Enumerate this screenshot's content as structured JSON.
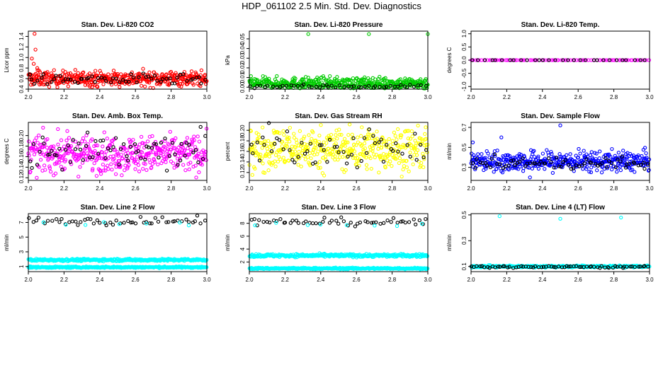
{
  "title": "HDP_061102  2.5 Min. Std. Dev. Diagnostics",
  "colors": {
    "red": "#ff0000",
    "green": "#00cc00",
    "magenta": "#ff00ff",
    "yellow": "#ffff00",
    "blue": "#0000ff",
    "cyan": "#00ffff",
    "black": "#000000"
  },
  "chart_data": [
    {
      "type": "scatter",
      "title": "Stan. Dev. Li-820 CO2",
      "ylabel": "Licor ppm",
      "xlim": [
        2.0,
        3.0
      ],
      "ylim": [
        0.4,
        1.5
      ],
      "xticks": [
        "2.0",
        "2.2",
        "2.4",
        "2.6",
        "2.8",
        "3.0"
      ],
      "yticks": [
        "0.4",
        "0.6",
        "0.8",
        "1.0",
        "1.2",
        "1.4"
      ],
      "ytick_values": [
        0.4,
        0.6,
        0.8,
        1.0,
        1.2,
        1.4
      ],
      "series": [
        {
          "name": "main",
          "color": "#ff0000",
          "n": 450,
          "mean": 0.6,
          "spread": 0.07,
          "outliers": [
            [
              2.02,
              0.98
            ],
            [
              2.03,
              0.88
            ],
            [
              2.035,
              1.45
            ],
            [
              2.04,
              1.15
            ],
            [
              2.05,
              0.8
            ],
            [
              2.06,
              0.75
            ]
          ]
        },
        {
          "name": "overlay",
          "color": "#000000",
          "n": 60,
          "mean": 0.58,
          "spread": 0.05
        }
      ]
    },
    {
      "type": "scatter",
      "title": "Stan. Dev. Li-820 Pressure",
      "ylabel": "kPa",
      "xlim": [
        2.0,
        3.0
      ],
      "ylim": [
        -0.002,
        0.058
      ],
      "xticks": [
        "2.0",
        "2.2",
        "2.4",
        "2.6",
        "2.8",
        "3.0"
      ],
      "yticks": [
        "0.00",
        "0.01",
        "0.02",
        "0.03",
        "0.04",
        "0.05"
      ],
      "ytick_values": [
        0.0,
        0.01,
        0.02,
        0.03,
        0.04,
        0.05
      ],
      "series": [
        {
          "name": "main",
          "color": "#00cc00",
          "n": 450,
          "mean": 0.004,
          "spread": 0.003,
          "outliers": [
            [
              2.33,
              0.055
            ],
            [
              2.67,
              0.055
            ],
            [
              3.0,
              0.055
            ]
          ]
        },
        {
          "name": "overlay",
          "color": "#000000",
          "n": 50,
          "mean": 0.001,
          "spread": 0.001
        }
      ]
    },
    {
      "type": "scatter",
      "title": "Stan. Dev. Li-820 Temp.",
      "ylabel": "degrees C",
      "xlim": [
        2.0,
        3.0
      ],
      "ylim": [
        -1.1,
        1.1
      ],
      "xticks": [
        "2.0",
        "2.2",
        "2.4",
        "2.6",
        "2.8",
        "3.0"
      ],
      "yticks": [
        "-1.0",
        "-0.5",
        "0.0",
        "0.5",
        "1.0"
      ],
      "ytick_values": [
        -1.0,
        -0.5,
        0.0,
        0.5,
        1.0
      ],
      "series": [
        {
          "name": "main",
          "color": "#ff00ff",
          "n": 90,
          "mean": 0.0,
          "spread": 0.0
        },
        {
          "name": "overlay",
          "color": "#000000",
          "n": 30,
          "mean": 0.0,
          "spread": 0.0
        }
      ]
    },
    {
      "type": "scatter",
      "title": "Stan. Dev. Amb. Box Temp.",
      "ylabel": "degrees C",
      "xlim": [
        2.0,
        3.0
      ],
      "ylim": [
        0.115,
        0.225
      ],
      "xticks": [
        "2.0",
        "2.2",
        "2.4",
        "2.6",
        "2.8",
        "3.0"
      ],
      "yticks": [
        "0.12",
        "0.14",
        "0.16",
        "0.18",
        "0.20"
      ],
      "ytick_values": [
        0.12,
        0.14,
        0.16,
        0.18,
        0.2
      ],
      "series": [
        {
          "name": "main",
          "color": "#ff00ff",
          "n": 450,
          "mean": 0.165,
          "spread": 0.017
        },
        {
          "name": "overlay",
          "color": "#000000",
          "n": 70,
          "mean": 0.168,
          "spread": 0.017
        }
      ]
    },
    {
      "type": "scatter",
      "title": "Stan. Dev. Gas Stream RH",
      "ylabel": "percent",
      "xlim": [
        2.0,
        3.0
      ],
      "ylim": [
        0.105,
        0.215
      ],
      "xticks": [
        "2.0",
        "2.2",
        "2.4",
        "2.6",
        "2.8",
        "3.0"
      ],
      "yticks": [
        "0.12",
        "0.14",
        "0.16",
        "0.18",
        "0.20"
      ],
      "ytick_values": [
        0.12,
        0.14,
        0.16,
        0.18,
        0.2
      ],
      "series": [
        {
          "name": "main",
          "color": "#ffff00",
          "n": 450,
          "mean": 0.165,
          "spread": 0.02
        },
        {
          "name": "overlay",
          "color": "#000000",
          "n": 60,
          "mean": 0.168,
          "spread": 0.018
        }
      ]
    },
    {
      "type": "scatter",
      "title": "Stan. Dev. Sample Flow",
      "ylabel": "ml/min",
      "xlim": [
        2.0,
        3.0
      ],
      "ylim": [
        0.17,
        0.75
      ],
      "xticks": [
        "2.0",
        "2.2",
        "2.4",
        "2.6",
        "2.8",
        "3.0"
      ],
      "yticks": [
        "0.3",
        "0.5",
        "0.7"
      ],
      "ytick_values": [
        0.3,
        0.5,
        0.7
      ],
      "series": [
        {
          "name": "main",
          "color": "#0000ff",
          "n": 450,
          "mean": 0.36,
          "spread": 0.05,
          "outliers": [
            [
              2.01,
              0.55
            ],
            [
              2.17,
              0.6
            ],
            [
              2.5,
              0.72
            ],
            [
              2.33,
              0.2
            ]
          ]
        },
        {
          "name": "overlay",
          "color": "#000000",
          "n": 70,
          "mean": 0.34,
          "spread": 0.03
        }
      ]
    },
    {
      "type": "scatter",
      "title": "Stan. Dev. Line 2 Flow",
      "ylabel": "ml/min",
      "xlim": [
        2.0,
        3.0
      ],
      "ylim": [
        0.3,
        8.2
      ],
      "xticks": [
        "2.0",
        "2.2",
        "2.4",
        "2.6",
        "2.8",
        "3.0"
      ],
      "yticks": [
        "1",
        "3",
        "5",
        "7"
      ],
      "ytick_values": [
        1,
        3,
        5,
        7
      ],
      "series": [
        {
          "name": "cyan-band-upper",
          "color": "#00ffff",
          "n": 350,
          "mean": 1.9,
          "spread": 0.08
        },
        {
          "name": "cyan-band-lower",
          "color": "#00ffff",
          "n": 350,
          "mean": 0.9,
          "spread": 0.05
        },
        {
          "name": "black-top",
          "color": "#000000",
          "n": 55,
          "mean": 7.2,
          "spread": 0.25
        },
        {
          "name": "cyan-top",
          "color": "#00ffff",
          "n": 8,
          "mean": 6.8,
          "spread": 0.15
        }
      ]
    },
    {
      "type": "scatter",
      "title": "Stan. Dev. Line 3 Flow",
      "ylabel": "ml/min",
      "xlim": [
        2.0,
        3.0
      ],
      "ylim": [
        0.5,
        9.5
      ],
      "xticks": [
        "2.0",
        "2.2",
        "2.4",
        "2.6",
        "2.8",
        "3.0"
      ],
      "yticks": [
        "2",
        "4",
        "6",
        "8"
      ],
      "ytick_values": [
        2,
        4,
        6,
        8
      ],
      "series": [
        {
          "name": "cyan-band-upper",
          "color": "#00ffff",
          "n": 350,
          "mean": 3.0,
          "spread": 0.12
        },
        {
          "name": "cyan-band-lower",
          "color": "#00ffff",
          "n": 350,
          "mean": 1.0,
          "spread": 0.06
        },
        {
          "name": "black-top",
          "color": "#000000",
          "n": 55,
          "mean": 8.2,
          "spread": 0.3
        },
        {
          "name": "cyan-top",
          "color": "#00ffff",
          "n": 8,
          "mean": 7.7,
          "spread": 0.15
        }
      ]
    },
    {
      "type": "scatter",
      "title": "Stan. Dev. Line 4 (LT) Flow",
      "ylabel": "ml/min",
      "xlim": [
        2.0,
        3.0
      ],
      "ylim": [
        0.06,
        0.51
      ],
      "xticks": [
        "2.0",
        "2.2",
        "2.4",
        "2.6",
        "2.8",
        "3.0"
      ],
      "yticks": [
        "0.1",
        "0.3",
        "0.5"
      ],
      "ytick_values": [
        0.1,
        0.3,
        0.5
      ],
      "series": [
        {
          "name": "main",
          "color": "#00ffff",
          "n": 400,
          "mean": 0.1,
          "spread": 0.004,
          "outliers": [
            [
              2.16,
              0.49
            ],
            [
              2.5,
              0.47
            ],
            [
              2.84,
              0.48
            ]
          ]
        },
        {
          "name": "overlay",
          "color": "#000000",
          "n": 70,
          "mean": 0.097,
          "spread": 0.004
        }
      ]
    }
  ]
}
